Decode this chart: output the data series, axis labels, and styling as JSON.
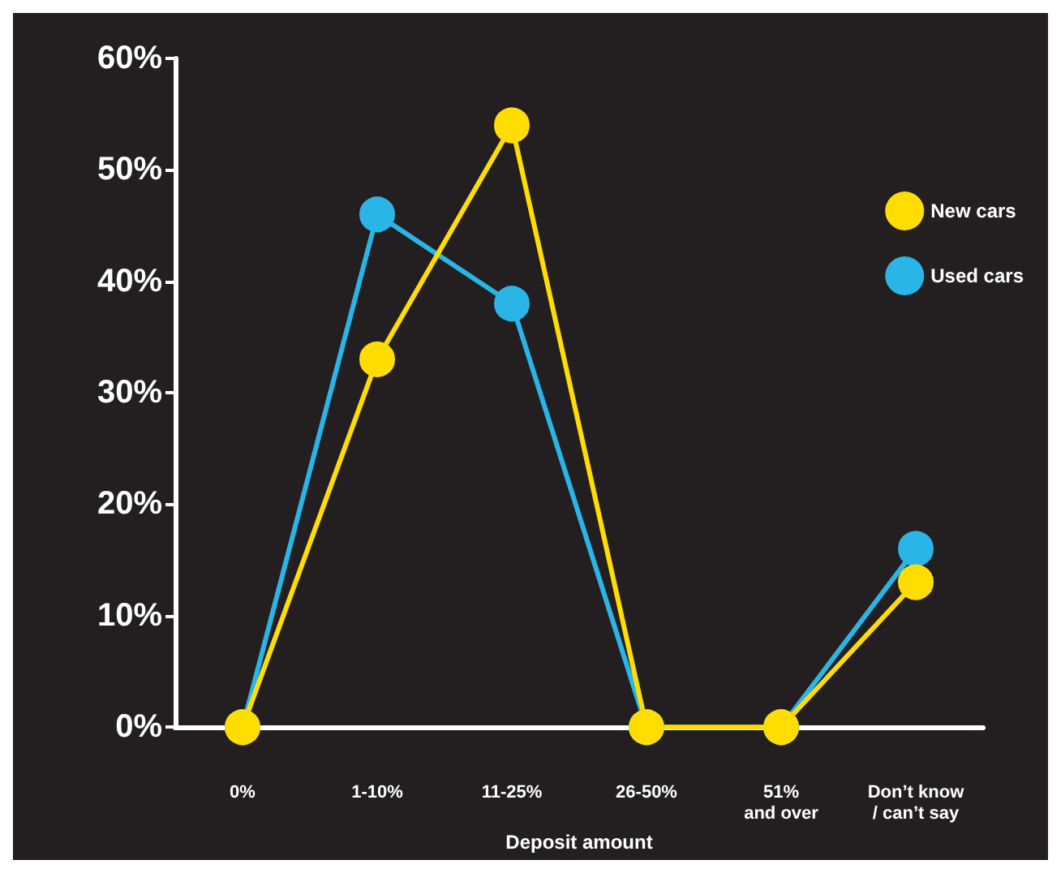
{
  "chart_data": {
    "type": "line",
    "xlabel": "Deposit amount",
    "categories": [
      "0%",
      "1-10%",
      "11-25%",
      "26-50%",
      "51%\nand over",
      "Don’t know\n/ can’t say"
    ],
    "series": [
      {
        "name": "Used cars",
        "color": "#29b5e6",
        "values": [
          0,
          46,
          38,
          0,
          0,
          16
        ]
      },
      {
        "name": "New cars",
        "color": "#ffdd00",
        "values": [
          0,
          33,
          54,
          0,
          0,
          13
        ]
      }
    ],
    "ylim": [
      0,
      60
    ],
    "yticks": [
      {
        "value": 0,
        "label": "0%"
      },
      {
        "value": 10,
        "label": "10%"
      },
      {
        "value": 20,
        "label": "20%"
      },
      {
        "value": 30,
        "label": "30%"
      },
      {
        "value": 40,
        "label": "40%"
      },
      {
        "value": 50,
        "label": "50%"
      },
      {
        "value": 60,
        "label": "60%"
      }
    ],
    "grid": false,
    "legend": "top right",
    "marker": "circle",
    "line_style": "solid"
  }
}
